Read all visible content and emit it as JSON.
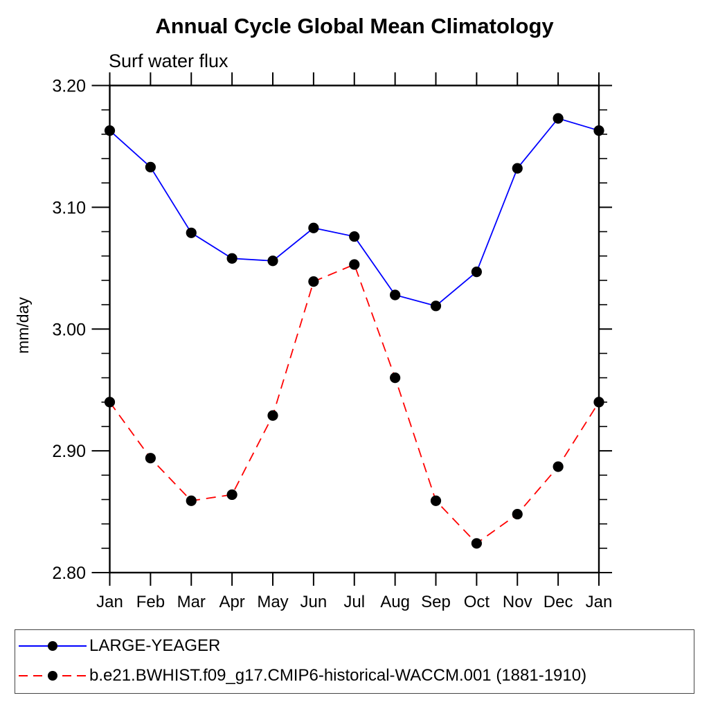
{
  "title": "Annual Cycle Global Mean Climatology",
  "subtitle": "Surf water flux",
  "ylabel": "mm/day",
  "colors": {
    "series1": "#0000ff",
    "series2": "#ff0000",
    "marker": "#000000",
    "axis": "#000000",
    "background": "#ffffff"
  },
  "legend": {
    "entries": [
      {
        "label": "LARGE-YEAGER",
        "line_style": "solid",
        "color": "#0000ff",
        "marker": "black-dot"
      },
      {
        "label": "b.e21.BWHIST.f09_g17.CMIP6-historical-WACCM.001 (1881-1910)",
        "line_style": "dashed",
        "color": "#ff0000",
        "marker": "black-dot"
      }
    ]
  },
  "chart_data": {
    "type": "line",
    "title": "Annual Cycle Global Mean Climatology",
    "subtitle": "Surf water flux",
    "xlabel": "",
    "ylabel": "mm/day",
    "categories": [
      "Jan",
      "Feb",
      "Mar",
      "Apr",
      "May",
      "Jun",
      "Jul",
      "Aug",
      "Sep",
      "Oct",
      "Nov",
      "Dec",
      "Jan"
    ],
    "series": [
      {
        "name": "LARGE-YEAGER",
        "color": "#0000ff",
        "style": "solid",
        "marker": "circle",
        "values": [
          3.163,
          3.133,
          3.079,
          3.058,
          3.056,
          3.083,
          3.076,
          3.028,
          3.019,
          3.047,
          3.132,
          3.173,
          3.163
        ]
      },
      {
        "name": "b.e21.BWHIST.f09_g17.CMIP6-historical-WACCM.001 (1881-1910)",
        "color": "#ff0000",
        "style": "dashed",
        "marker": "circle",
        "values": [
          2.94,
          2.894,
          2.859,
          2.864,
          2.929,
          3.039,
          3.053,
          2.96,
          2.859,
          2.824,
          2.848,
          2.887,
          2.94
        ]
      }
    ],
    "ylim": [
      2.8,
      3.2
    ],
    "y_major_ticks": [
      3.2,
      3.1,
      3.0,
      2.9,
      2.8
    ],
    "y_minor_step": 0.02,
    "y_tick_format": "0.00",
    "grid": false,
    "legend_position": "bottom"
  }
}
